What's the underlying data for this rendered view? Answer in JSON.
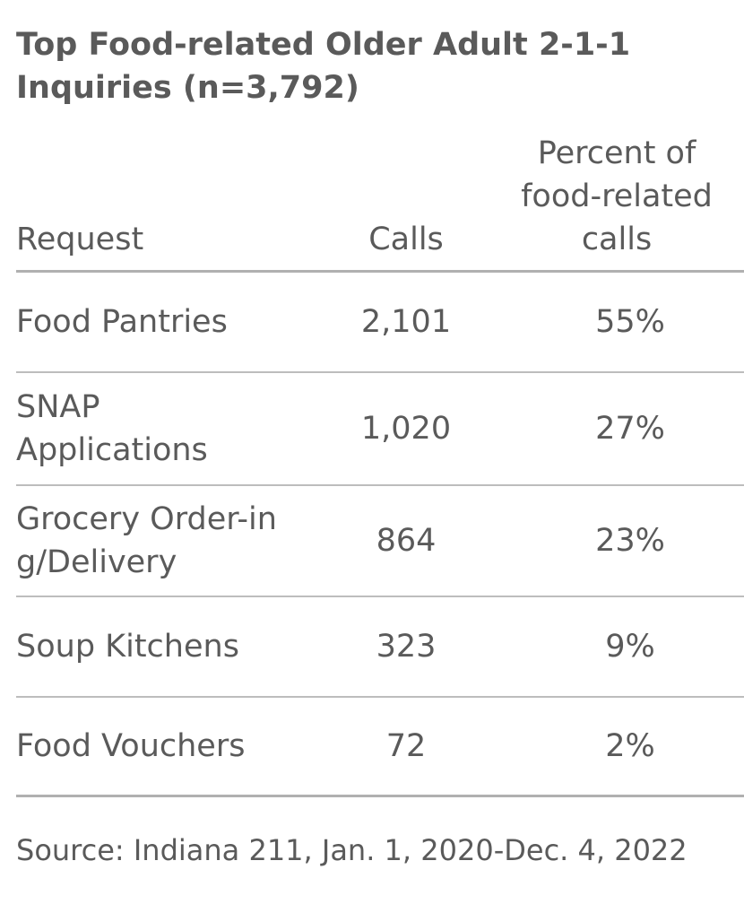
{
  "title": "Top Food-related Older Adult  2-1-1 Inquiries (n=3,792)",
  "columns": {
    "request": "Request",
    "calls": "Calls",
    "percent": "Percent of food-related calls"
  },
  "rows": [
    {
      "request": "Food Pantries",
      "calls": "2,101",
      "percent": "55%"
    },
    {
      "request": "SNAP Applications",
      "calls": "1,020",
      "percent": "27%"
    },
    {
      "request": "Grocery Order-ing/Delivery",
      "calls": "864",
      "percent": "23%"
    },
    {
      "request": "Soup Kitchens",
      "calls": "323",
      "percent": "9%"
    },
    {
      "request": "Food Vouchers",
      "calls": "72",
      "percent": "2%"
    }
  ],
  "source": "Source: Indiana 211, Jan. 1, 2020-Dec. 4, 2022",
  "chart_data": {
    "type": "table",
    "title": "Top Food-related Older Adult  2-1-1 Inquiries (n=3,792)",
    "columns": [
      "Request",
      "Calls",
      "Percent of food-related calls"
    ],
    "rows": [
      [
        "Food Pantries",
        2101,
        55
      ],
      [
        "SNAP Applications",
        1020,
        27
      ],
      [
        "Grocery Order-ing/Delivery",
        864,
        23
      ],
      [
        "Soup Kitchens",
        323,
        9
      ],
      [
        "Food Vouchers",
        72,
        2
      ]
    ]
  }
}
